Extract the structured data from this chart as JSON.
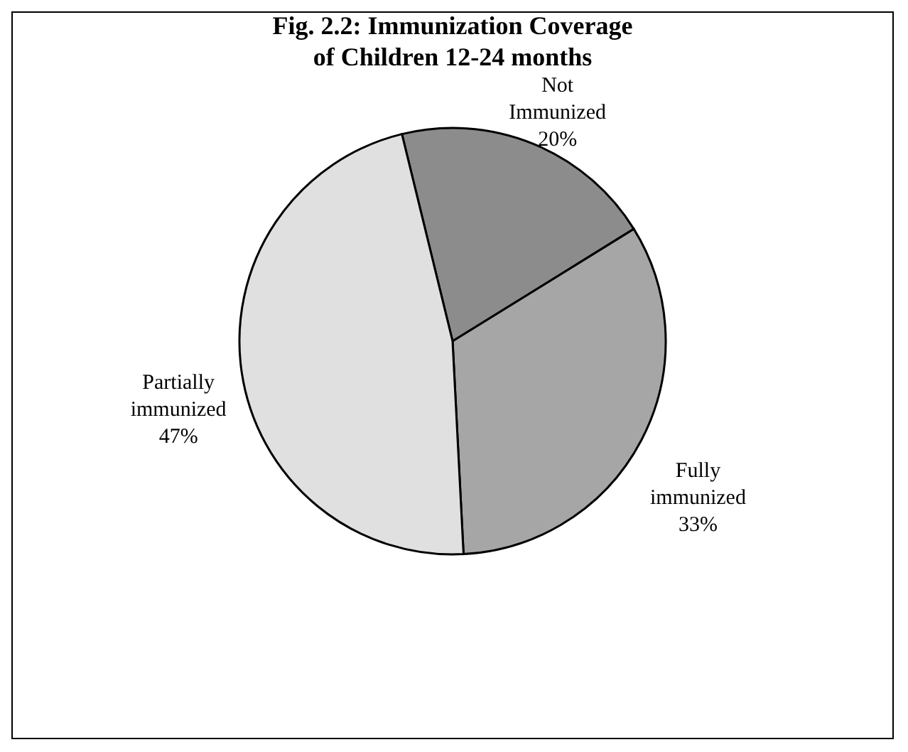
{
  "chart_data": {
    "type": "pie",
    "title": "Fig. 2.2:  Immunization Coverage of Children 12-24 months",
    "categories": [
      "Not Immunized",
      "Fully immunized",
      "Partially immunized"
    ],
    "values": [
      20,
      33,
      47
    ],
    "value_labels": [
      "20%",
      "33%",
      "47%"
    ],
    "colors": [
      "#8c8c8c",
      "#a6a6a6",
      "#e0e0e0"
    ],
    "legend": false
  }
}
